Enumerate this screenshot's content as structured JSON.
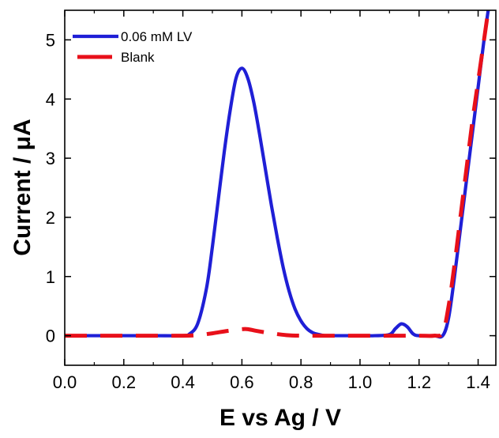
{
  "chart_data": {
    "type": "line",
    "title": "",
    "xlabel": "E vs Ag / V",
    "ylabel": "Current / μA",
    "xlim": [
      0.0,
      1.46
    ],
    "ylim": [
      -0.5,
      5.5
    ],
    "xticks": [
      0.0,
      0.2,
      0.4,
      0.6,
      0.8,
      1.0,
      1.2,
      1.4
    ],
    "xtick_labels": [
      "0.0",
      "0.2",
      "0.4",
      "0.6",
      "0.8",
      "1.0",
      "1.2",
      "1.4"
    ],
    "yticks": [
      0,
      1,
      2,
      3,
      4,
      5
    ],
    "ytick_labels": [
      "0",
      "1",
      "2",
      "3",
      "4",
      "5"
    ],
    "grid": false,
    "legend_position": "top-left",
    "series": [
      {
        "name": "0.06 mM LV",
        "color": "#1f1fd6",
        "style": "solid",
        "x": [
          0.0,
          0.1,
          0.2,
          0.3,
          0.4,
          0.42,
          0.45,
          0.48,
          0.5,
          0.52,
          0.54,
          0.56,
          0.58,
          0.6,
          0.62,
          0.64,
          0.66,
          0.68,
          0.7,
          0.72,
          0.74,
          0.76,
          0.78,
          0.8,
          0.82,
          0.84,
          0.86,
          0.88,
          0.9,
          0.95,
          1.0,
          1.05,
          1.1,
          1.12,
          1.14,
          1.16,
          1.18,
          1.2,
          1.25,
          1.28,
          1.3,
          1.32,
          1.34,
          1.36,
          1.38,
          1.4,
          1.42,
          1.44,
          1.46
        ],
        "y": [
          0.0,
          0.0,
          0.0,
          0.0,
          0.0,
          0.02,
          0.2,
          0.8,
          1.5,
          2.3,
          3.1,
          3.8,
          4.35,
          4.52,
          4.35,
          3.95,
          3.4,
          2.8,
          2.2,
          1.65,
          1.15,
          0.75,
          0.45,
          0.25,
          0.12,
          0.05,
          0.02,
          0.0,
          0.0,
          0.0,
          0.0,
          0.0,
          0.02,
          0.12,
          0.2,
          0.15,
          0.03,
          0.0,
          0.0,
          0.0,
          0.3,
          1.0,
          1.8,
          2.6,
          3.4,
          4.2,
          5.0,
          5.7,
          6.4
        ]
      },
      {
        "name": "Blank",
        "color": "#e8101a",
        "style": "dashed",
        "x": [
          0.0,
          0.1,
          0.2,
          0.3,
          0.4,
          0.45,
          0.5,
          0.55,
          0.6,
          0.62,
          0.65,
          0.7,
          0.75,
          0.8,
          0.9,
          1.0,
          1.1,
          1.2,
          1.25,
          1.28,
          1.3,
          1.32,
          1.34,
          1.36,
          1.38,
          1.4,
          1.42,
          1.44,
          1.46
        ],
        "y": [
          0.0,
          0.0,
          0.0,
          0.0,
          0.0,
          0.01,
          0.04,
          0.08,
          0.11,
          0.11,
          0.08,
          0.04,
          0.01,
          0.0,
          0.0,
          0.0,
          0.0,
          0.0,
          0.0,
          0.05,
          0.5,
          1.2,
          2.0,
          2.8,
          3.6,
          4.3,
          5.0,
          5.7,
          6.4
        ]
      }
    ]
  }
}
